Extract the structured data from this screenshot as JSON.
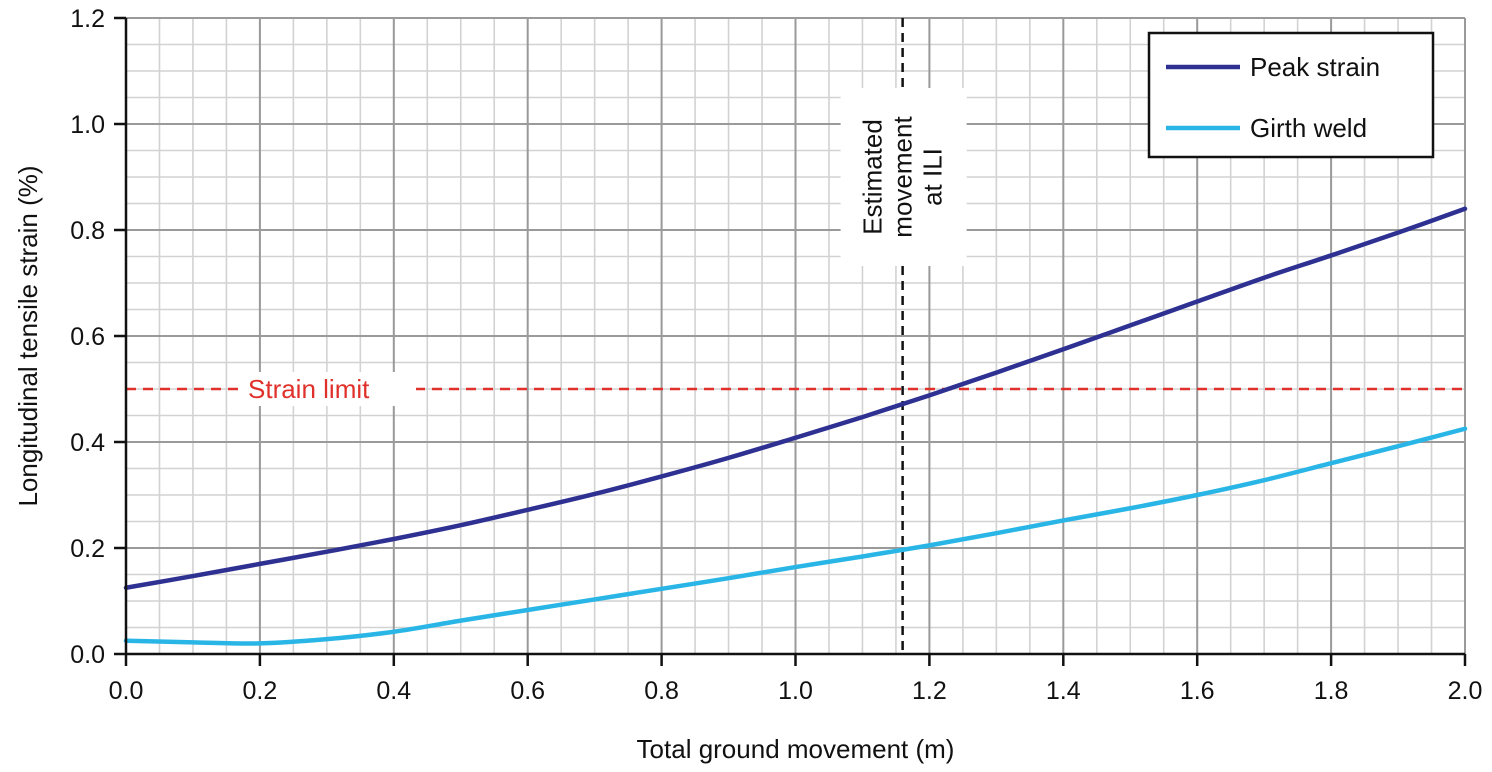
{
  "chart_data": {
    "type": "line",
    "title": "",
    "xlabel": "Total ground movement (m)",
    "ylabel": "Longitudinal tensile strain (%)",
    "xlim": [
      0.0,
      2.0
    ],
    "ylim": [
      0.0,
      1.2
    ],
    "x_ticks": [
      "0.0",
      "0.2",
      "0.4",
      "0.6",
      "0.8",
      "1.0",
      "1.2",
      "1.4",
      "1.6",
      "1.8",
      "2.0"
    ],
    "y_ticks": [
      "0.0",
      "0.2",
      "0.4",
      "0.6",
      "0.8",
      "1.0",
      "1.2"
    ],
    "grid": true,
    "legend_position": "top-right",
    "series": [
      {
        "name": "Peak strain",
        "color": "#2e3192",
        "x": [
          0.0,
          0.1,
          0.2,
          0.3,
          0.4,
          0.5,
          0.6,
          0.7,
          0.8,
          0.9,
          1.0,
          1.1,
          1.2,
          1.3,
          1.4,
          1.5,
          1.6,
          1.7,
          1.8,
          1.9,
          2.0
        ],
        "y": [
          0.125,
          0.147,
          0.17,
          0.193,
          0.217,
          0.243,
          0.272,
          0.302,
          0.335,
          0.37,
          0.408,
          0.447,
          0.488,
          0.531,
          0.575,
          0.62,
          0.665,
          0.71,
          0.752,
          0.795,
          0.84
        ]
      },
      {
        "name": "Girth weld",
        "color": "#29b6e6",
        "x": [
          0.0,
          0.1,
          0.2,
          0.3,
          0.4,
          0.5,
          0.6,
          0.7,
          0.8,
          0.9,
          1.0,
          1.1,
          1.2,
          1.3,
          1.4,
          1.5,
          1.6,
          1.7,
          1.8,
          1.9,
          2.0
        ],
        "y": [
          0.025,
          0.022,
          0.02,
          0.028,
          0.042,
          0.063,
          0.083,
          0.103,
          0.123,
          0.143,
          0.164,
          0.184,
          0.205,
          0.228,
          0.252,
          0.275,
          0.3,
          0.328,
          0.36,
          0.392,
          0.425
        ]
      }
    ],
    "reference_lines": {
      "strain_limit": {
        "label": "Strain limit",
        "y": 0.5,
        "color": "#e0302a"
      },
      "ili_movement": {
        "label_lines": [
          "Estimated",
          "movement",
          "at ILI"
        ],
        "x": 1.16,
        "color": "#111111"
      }
    }
  }
}
